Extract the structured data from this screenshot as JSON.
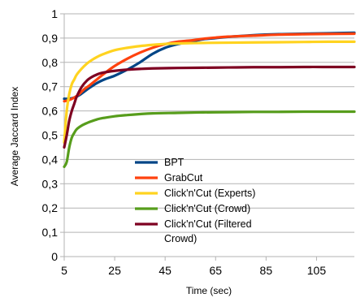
{
  "chart_data": {
    "type": "line",
    "title": "",
    "xlabel": "Time (sec)",
    "ylabel": "Average Jaccard Index",
    "xlim": [
      5,
      120
    ],
    "ylim": [
      0,
      1
    ],
    "x_ticks": [
      5,
      25,
      45,
      65,
      85,
      105
    ],
    "x_tick_labels": [
      "5",
      "25",
      "45",
      "65",
      "85",
      "105"
    ],
    "y_ticks": [
      0,
      0.1,
      0.2,
      0.3,
      0.4,
      0.5,
      0.6,
      0.7,
      0.8,
      0.9,
      1
    ],
    "y_tick_labels": [
      "0",
      "0,1",
      "0,2",
      "0,3",
      "0,4",
      "0,5",
      "0,6",
      "0,7",
      "0,8",
      "0,9",
      "1"
    ],
    "grid": "horizontal",
    "legend": "center-left",
    "series": [
      {
        "name": "BPT",
        "color": "#004586",
        "x": [
          5,
          7,
          9,
          11,
          13,
          15,
          18,
          21,
          25,
          30,
          35,
          40,
          45,
          50,
          55,
          60,
          65,
          70,
          80,
          90,
          100,
          110,
          120
        ],
        "y": [
          0.65,
          0.65,
          0.655,
          0.665,
          0.68,
          0.695,
          0.715,
          0.73,
          0.745,
          0.77,
          0.8,
          0.835,
          0.86,
          0.875,
          0.885,
          0.895,
          0.9,
          0.905,
          0.912,
          0.916,
          0.918,
          0.92,
          0.922
        ]
      },
      {
        "name": "GrabCut",
        "color": "#ff420e",
        "x": [
          5,
          7,
          9,
          11,
          13,
          15,
          18,
          21,
          25,
          30,
          35,
          40,
          45,
          50,
          55,
          60,
          65,
          70,
          80,
          90,
          100,
          110,
          120
        ],
        "y": [
          0.64,
          0.645,
          0.655,
          0.67,
          0.69,
          0.705,
          0.73,
          0.755,
          0.785,
          0.815,
          0.84,
          0.86,
          0.875,
          0.885,
          0.89,
          0.897,
          0.902,
          0.906,
          0.91,
          0.914,
          0.916,
          0.917,
          0.918
        ]
      },
      {
        "name": "Click'n'Cut (Experts)",
        "color": "#ffd320",
        "x": [
          5,
          6,
          7,
          8,
          9,
          10,
          12,
          14,
          16,
          18,
          20,
          25,
          30,
          35,
          40,
          45,
          50,
          60,
          70,
          80,
          90,
          100,
          110,
          120
        ],
        "y": [
          0.47,
          0.6,
          0.67,
          0.71,
          0.73,
          0.75,
          0.775,
          0.795,
          0.81,
          0.822,
          0.832,
          0.85,
          0.86,
          0.867,
          0.872,
          0.876,
          0.878,
          0.88,
          0.881,
          0.882,
          0.883,
          0.884,
          0.885,
          0.885
        ]
      },
      {
        "name": "Click'n'Cut (Crowd)",
        "color": "#579d1c",
        "x": [
          5,
          6,
          7,
          8,
          9,
          10,
          12,
          14,
          16,
          18,
          20,
          25,
          30,
          35,
          40,
          50,
          60,
          70,
          80,
          90,
          100,
          110,
          120
        ],
        "y": [
          0.37,
          0.39,
          0.45,
          0.49,
          0.51,
          0.525,
          0.54,
          0.55,
          0.558,
          0.565,
          0.57,
          0.578,
          0.583,
          0.587,
          0.59,
          0.592,
          0.594,
          0.595,
          0.596,
          0.596,
          0.597,
          0.597,
          0.597
        ]
      },
      {
        "name": "Click'n'Cut (Filtered Crowd)",
        "color": "#7e0021",
        "x": [
          5,
          6,
          7,
          8,
          9,
          10,
          12,
          14,
          16,
          18,
          20,
          25,
          30,
          35,
          40,
          50,
          60,
          70,
          80,
          90,
          100,
          110,
          120
        ],
        "y": [
          0.45,
          0.5,
          0.56,
          0.6,
          0.63,
          0.66,
          0.7,
          0.725,
          0.74,
          0.75,
          0.757,
          0.765,
          0.77,
          0.773,
          0.775,
          0.777,
          0.778,
          0.779,
          0.78,
          0.78,
          0.781,
          0.781,
          0.781
        ]
      }
    ],
    "legend_labels": [
      [
        "BPT"
      ],
      [
        "GrabCut"
      ],
      [
        "Click'n'Cut (Experts)"
      ],
      [
        "Click'n'Cut (Crowd)"
      ],
      [
        "Click'n'Cut (Filtered",
        "Crowd)"
      ]
    ]
  }
}
